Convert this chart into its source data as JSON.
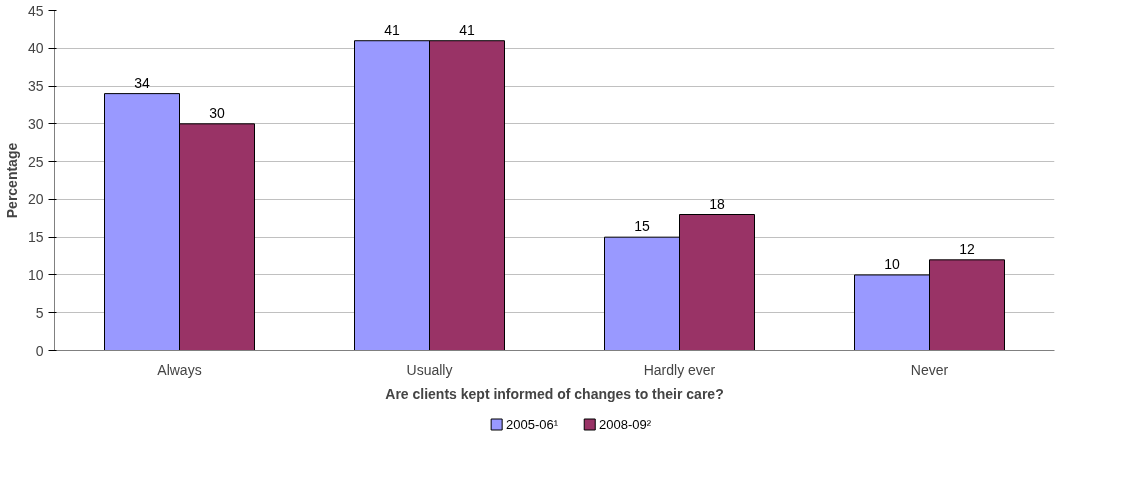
{
  "chart_data": {
    "type": "bar",
    "xlabel": "Are clients kept informed of changes to their care?",
    "ylabel": "Percentage",
    "categories": [
      "Always",
      "Usually",
      "Hardly ever",
      "Never"
    ],
    "series": [
      {
        "name": "2005-06¹",
        "color": "#9999ff",
        "values": [
          34,
          41,
          15,
          10
        ]
      },
      {
        "name": "2008-09²",
        "color": "#993366",
        "values": [
          30,
          41,
          18,
          12
        ]
      }
    ],
    "ylim": [
      0,
      45
    ],
    "yticks": [
      0,
      5,
      10,
      15,
      20,
      25,
      30,
      35,
      40,
      45
    ],
    "grid": "y",
    "legend": "bottom",
    "data_labels": true
  }
}
